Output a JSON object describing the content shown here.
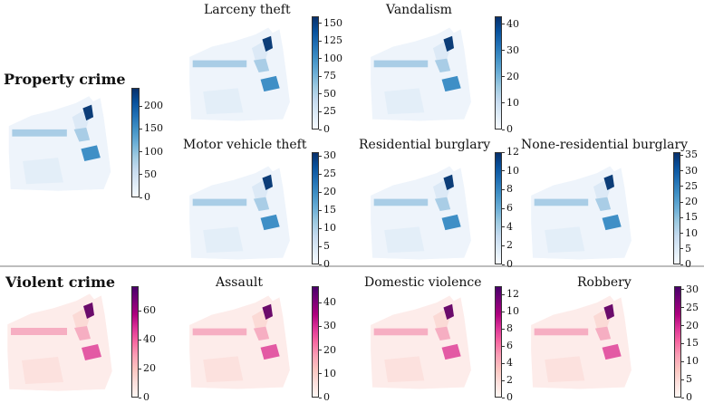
{
  "sections": {
    "property": "Property crime",
    "violent": "Violent crime"
  },
  "panels": [
    {
      "key": "property_all",
      "title": "",
      "cmap": "blues",
      "ticks": [
        0,
        50,
        100,
        150,
        200
      ]
    },
    {
      "key": "larceny",
      "title": "Larceny theft",
      "cmap": "blues",
      "ticks": [
        0,
        25,
        50,
        75,
        100,
        125,
        150
      ]
    },
    {
      "key": "vandalism",
      "title": "Vandalism",
      "cmap": "blues",
      "ticks": [
        0,
        10,
        20,
        30,
        40
      ]
    },
    {
      "key": "motor",
      "title": "Motor vehicle theft",
      "cmap": "blues",
      "ticks": [
        0,
        5,
        10,
        15,
        20,
        25,
        30
      ]
    },
    {
      "key": "residential",
      "title": "Residential burglary",
      "cmap": "blues",
      "ticks": [
        0,
        2,
        4,
        6,
        8,
        10,
        12
      ]
    },
    {
      "key": "nonres",
      "title": "None-residential burglary",
      "cmap": "blues",
      "ticks": [
        0,
        5,
        10,
        15,
        20,
        25,
        30,
        35
      ]
    },
    {
      "key": "violent_all",
      "title": "",
      "cmap": "pinks",
      "ticks": [
        0,
        20,
        40,
        60
      ]
    },
    {
      "key": "assault",
      "title": "Assault",
      "cmap": "pinks",
      "ticks": [
        0,
        10,
        20,
        30,
        40
      ]
    },
    {
      "key": "domestic",
      "title": "Domestic violence",
      "cmap": "pinks",
      "ticks": [
        0,
        2,
        4,
        6,
        8,
        10,
        12
      ]
    },
    {
      "key": "robbery",
      "title": "Robbery",
      "cmap": "pinks",
      "ticks": [
        0,
        5,
        10,
        15,
        20,
        25,
        30
      ]
    }
  ],
  "chart_data": [
    {
      "type": "heatmap",
      "title": "Property crime",
      "colorbar_range": [
        0,
        240
      ],
      "colorbar_ticks": [
        0,
        50,
        100,
        150,
        200
      ]
    },
    {
      "type": "heatmap",
      "title": "Larceny theft",
      "colorbar_range": [
        0,
        160
      ],
      "colorbar_ticks": [
        0,
        25,
        50,
        75,
        100,
        125,
        150
      ]
    },
    {
      "type": "heatmap",
      "title": "Vandalism",
      "colorbar_range": [
        0,
        43
      ],
      "colorbar_ticks": [
        0,
        10,
        20,
        30,
        40
      ]
    },
    {
      "type": "heatmap",
      "title": "Motor vehicle theft",
      "colorbar_range": [
        0,
        31
      ],
      "colorbar_ticks": [
        0,
        5,
        10,
        15,
        20,
        25,
        30
      ]
    },
    {
      "type": "heatmap",
      "title": "Residential burglary",
      "colorbar_range": [
        0,
        12
      ],
      "colorbar_ticks": [
        0,
        2,
        4,
        6,
        8,
        10,
        12
      ]
    },
    {
      "type": "heatmap",
      "title": "None-residential burglary",
      "colorbar_range": [
        0,
        36
      ],
      "colorbar_ticks": [
        0,
        5,
        10,
        15,
        20,
        25,
        30,
        35
      ]
    },
    {
      "type": "heatmap",
      "title": "Violent crime",
      "colorbar_range": [
        0,
        77
      ],
      "colorbar_ticks": [
        0,
        20,
        40,
        60
      ]
    },
    {
      "type": "heatmap",
      "title": "Assault",
      "colorbar_range": [
        0,
        47
      ],
      "colorbar_ticks": [
        0,
        10,
        20,
        30,
        40
      ]
    },
    {
      "type": "heatmap",
      "title": "Domestic violence",
      "colorbar_range": [
        0,
        13
      ],
      "colorbar_ticks": [
        0,
        2,
        4,
        6,
        8,
        10,
        12
      ]
    },
    {
      "type": "heatmap",
      "title": "Robbery",
      "colorbar_range": [
        0,
        31
      ],
      "colorbar_ticks": [
        0,
        5,
        10,
        15,
        20,
        25,
        30
      ]
    }
  ]
}
